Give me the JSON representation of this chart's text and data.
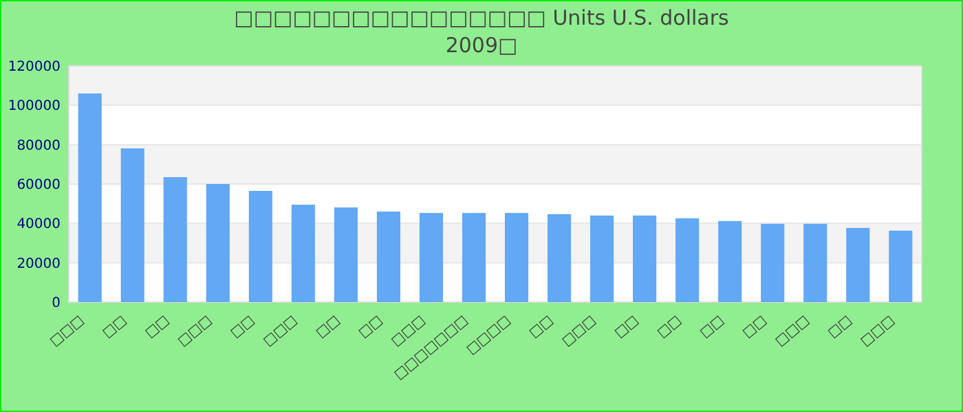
{
  "chart_data": {
    "type": "bar",
    "title": "□□□□□□□□□□□□□□□□ Units U.S. dollars",
    "subtitle": "2009□",
    "categories": [
      "□□□",
      "□□",
      "□□",
      "□□□",
      "□□",
      "□□□",
      "□□",
      "□□",
      "□□□",
      "□□□□□□□",
      "□□□□",
      "□□",
      "□□□",
      "□□",
      "□□",
      "□□",
      "□□",
      "□□□",
      "□□",
      "□□□"
    ],
    "values": [
      106000,
      78100,
      63500,
      60000,
      56500,
      49500,
      48100,
      46000,
      45300,
      45300,
      45300,
      44700,
      44000,
      44000,
      42600,
      41200,
      39800,
      39800,
      37700,
      36300
    ],
    "color": "#62a8f4",
    "ylim": [
      0,
      120000
    ],
    "yticks": [
      0,
      20000,
      40000,
      60000,
      80000,
      100000,
      120000
    ],
    "grid": "y"
  }
}
